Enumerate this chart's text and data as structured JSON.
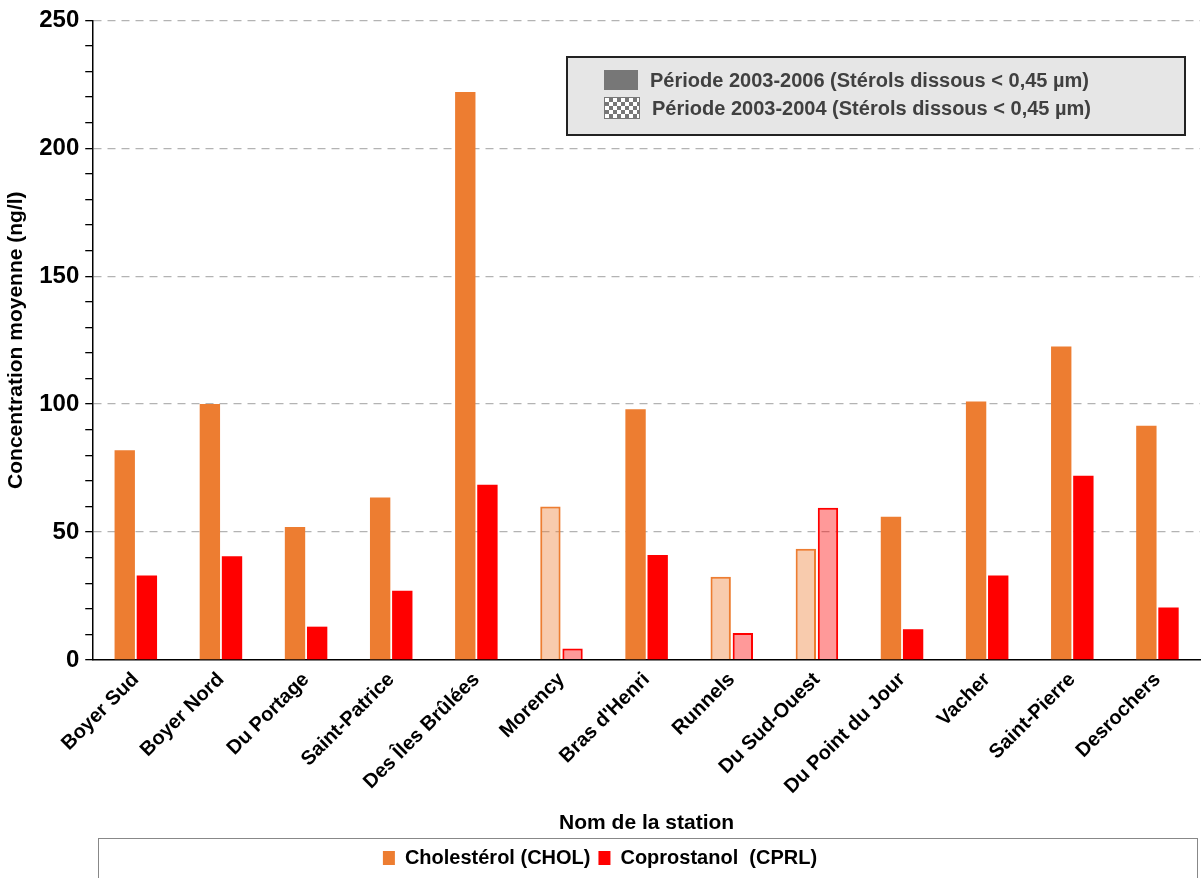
{
  "chart_data": {
    "type": "bar",
    "xlabel": "Nom de la station",
    "ylabel": "Concentration moyenne (ng/l)",
    "categories": [
      "Boyer Sud",
      "Boyer Nord",
      "Du Portage",
      "Saint-Patrice",
      "Des Îles Brûlées",
      "Morency",
      "Bras d'Henri",
      "Runnels",
      "Du Sud-Ouest",
      "Du Point du Jour",
      "Vacher",
      "Saint-Pierre",
      "Desrochers"
    ],
    "series": [
      {
        "name": "Cholestérol (CHOL)",
        "color": "#ed7d31",
        "values": [
          82,
          100,
          52,
          63.5,
          222,
          null,
          98,
          null,
          null,
          56,
          101,
          122.5,
          91.5
        ]
      },
      {
        "name": "Coprostanol  (CPRL)",
        "color": "#ff0000",
        "values": [
          33,
          40.5,
          13,
          27,
          68.5,
          null,
          41,
          null,
          null,
          12,
          33,
          72,
          20.5
        ]
      },
      {
        "color": "#ed7d31",
        "values": [
          null,
          null,
          null,
          null,
          null,
          60,
          null,
          32.5,
          43.5,
          null,
          null,
          null,
          null
        ]
      },
      {
        "color": "#ff0000",
        "values": [
          null,
          null,
          null,
          null,
          null,
          4.5,
          null,
          10.5,
          59.5,
          null,
          null,
          null,
          null
        ]
      }
    ],
    "annotations": [
      "Période 2003-2006 (Stérols dissous < 0,45 µm)",
      "Période 2003-2004 (Stérols dissous < 0,45 µm)"
    ],
    "ylim": [
      0,
      250
    ],
    "yticks": [
      0,
      {
        "value": 10,
        "label": null
      },
      {
        "value": 20,
        "label": null
      },
      {
        "value": 30,
        "label": null
      },
      {
        "value": 40,
        "label": null
      },
      50,
      {
        "value": 60,
        "label": null
      },
      {
        "value": 70,
        "label": null
      },
      {
        "value": 80,
        "label": null
      },
      {
        "value": 90,
        "label": null
      },
      100,
      {
        "value": 110,
        "label": null
      },
      {
        "value": 120,
        "label": null
      },
      {
        "value": 130,
        "label": null
      },
      {
        "value": 140,
        "label": null
      },
      150,
      {
        "value": 160,
        "label": null
      },
      {
        "value": 170,
        "label": null
      },
      {
        "value": 180,
        "label": null
      },
      {
        "value": 190,
        "label": null
      },
      200,
      {
        "value": 210,
        "label": null
      },
      {
        "value": 220,
        "label": null
      },
      {
        "value": 230,
        "label": null
      },
      {
        "value": 240,
        "label": null
      },
      250
    ],
    "grid": "y",
    "legend": "bottom"
  }
}
